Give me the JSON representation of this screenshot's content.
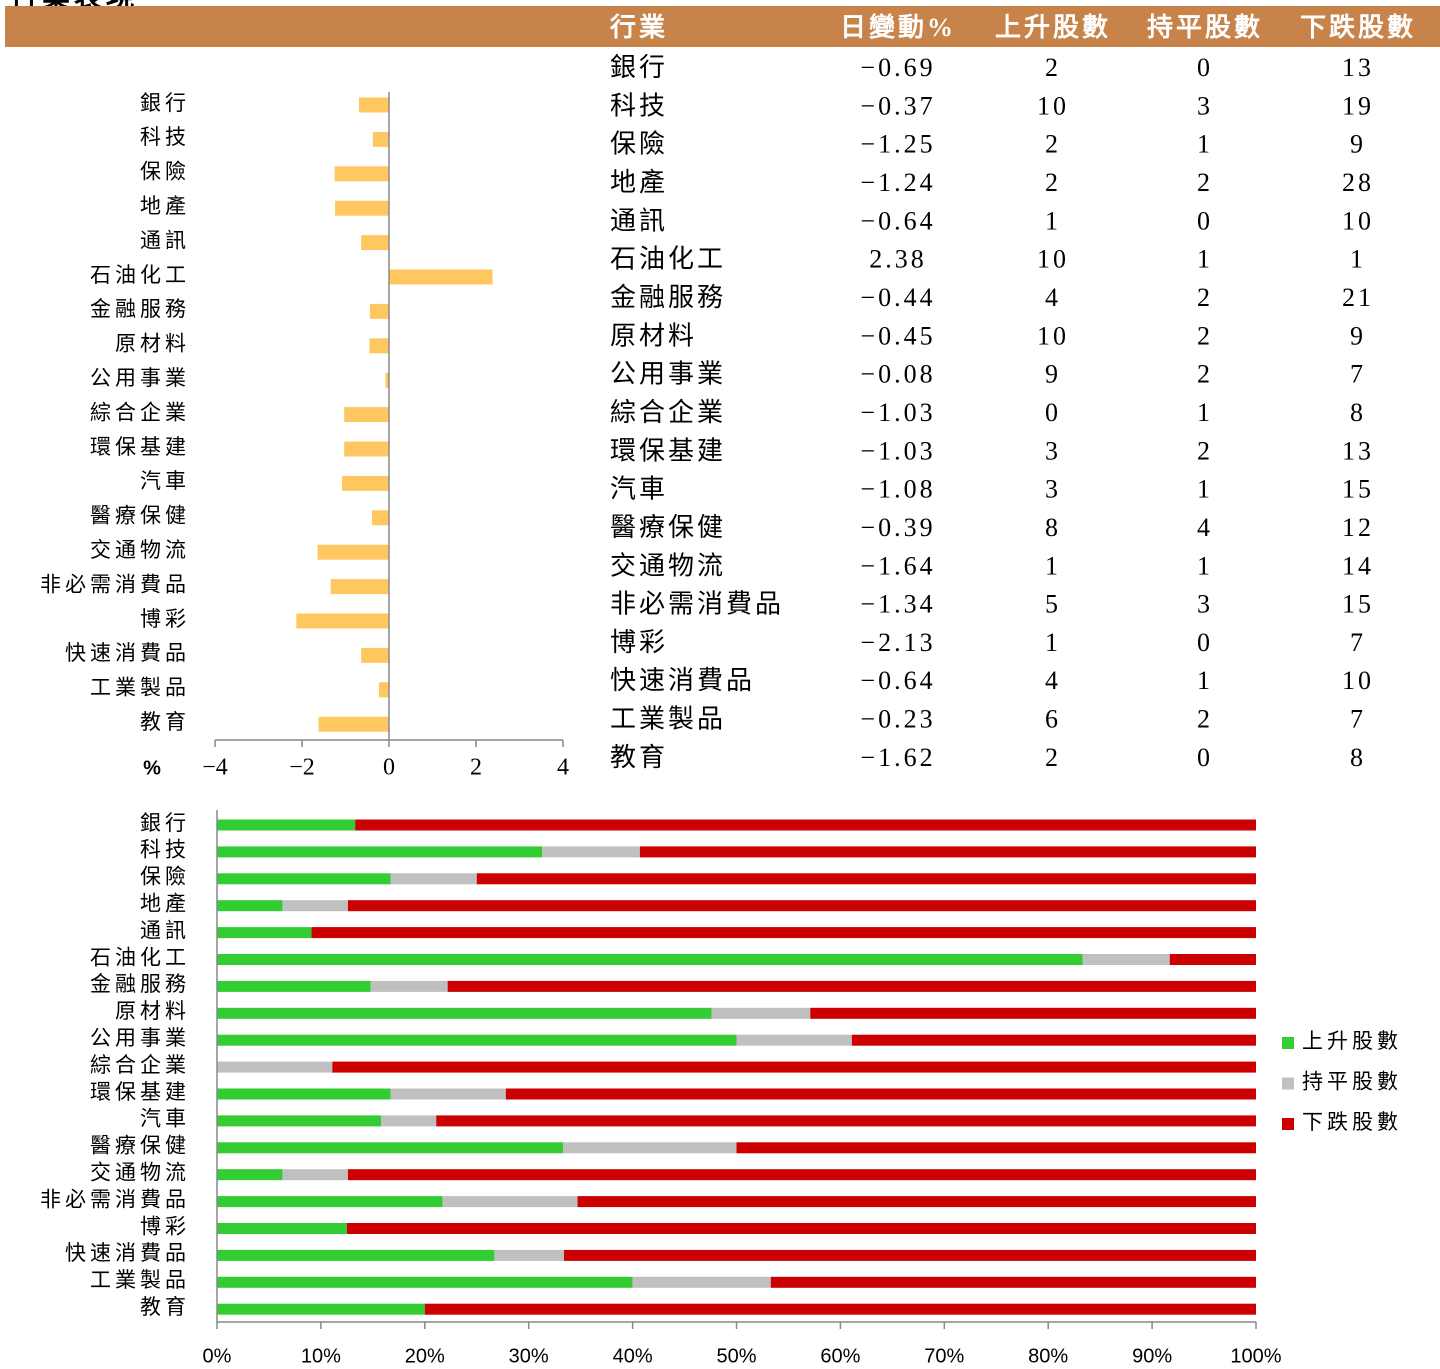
{
  "title": "行業表現",
  "chart_data": [
    {
      "type": "hbar",
      "xlabel": "%",
      "categories": [
        "銀行",
        "科技",
        "保險",
        "地產",
        "通訊",
        "石油化工",
        "金融服務",
        "原材料",
        "公用事業",
        "綜合企業",
        "環保基建",
        "汽車",
        "醫療保健",
        "交通物流",
        "非必需消費品",
        "博彩",
        "快速消費品",
        "工業製品",
        "教育"
      ],
      "values": [
        -0.69,
        -0.37,
        -1.25,
        -1.24,
        -0.64,
        2.38,
        -0.44,
        -0.45,
        -0.08,
        -1.03,
        -1.03,
        -1.08,
        -0.39,
        -1.64,
        -1.34,
        -2.13,
        -0.64,
        -0.23,
        -1.62
      ],
      "color": "#ffc760",
      "xlim": [
        -4,
        4
      ],
      "xticks": [
        {
          "value": -4,
          "label": "−4"
        },
        {
          "value": -2,
          "label": "−2"
        },
        0,
        2,
        4
      ]
    },
    {
      "type": "stacked-hbar",
      "categories": [
        "銀行",
        "科技",
        "保險",
        "地產",
        "通訊",
        "石油化工",
        "金融服務",
        "原材料",
        "公用事業",
        "綜合企業",
        "環保基建",
        "汽車",
        "醫療保健",
        "交通物流",
        "非必需消費品",
        "博彩",
        "快速消費品",
        "工業製品",
        "教育"
      ],
      "series": [
        {
          "name": "上升股數",
          "color": "#33cc33",
          "values": [
            13.3,
            31.3,
            16.7,
            6.3,
            9.1,
            83.3,
            14.8,
            47.6,
            50,
            0,
            16.7,
            15.8,
            33.3,
            6.3,
            21.7,
            12.5,
            26.7,
            40,
            20
          ]
        },
        {
          "name": "持平股數",
          "color": "#c0c0c0",
          "values": [
            0,
            9.4,
            8.3,
            6.3,
            0,
            8.4,
            7.4,
            9.5,
            11.1,
            11.1,
            11.1,
            5.3,
            16.7,
            6.3,
            13,
            0,
            6.7,
            13.3,
            0
          ]
        },
        {
          "name": "下跌股數",
          "color": "#cc0000",
          "values": [
            86.7,
            59.3,
            75,
            87.4,
            90.9,
            8.3,
            77.8,
            42.9,
            38.9,
            88.9,
            72.2,
            78.9,
            50,
            87.4,
            65.3,
            87.5,
            66.6,
            46.7,
            80
          ]
        }
      ],
      "xlim": [
        0,
        100
      ],
      "xticks": [
        {
          "value": 0,
          "label": "0%"
        },
        {
          "value": 10,
          "label": "10%"
        },
        {
          "value": 20,
          "label": "20%"
        },
        {
          "value": 30,
          "label": "30%"
        },
        {
          "value": 40,
          "label": "40%"
        },
        {
          "value": 50,
          "label": "50%"
        },
        {
          "value": 60,
          "label": "60%"
        },
        {
          "value": 70,
          "label": "70%"
        },
        {
          "value": 80,
          "label": "80%"
        },
        {
          "value": 90,
          "label": "90%"
        },
        {
          "value": 100,
          "label": "100%"
        }
      ],
      "legend": "right"
    }
  ],
  "table": {
    "header": [
      "行業",
      "日變動%",
      "上升股數",
      "持平股數",
      "下跌股數"
    ],
    "rows": [
      [
        "銀行",
        "−0.69",
        "2",
        "0",
        "13"
      ],
      [
        "科技",
        "−0.37",
        "10",
        "3",
        "19"
      ],
      [
        "保險",
        "−1.25",
        "2",
        "1",
        "9"
      ],
      [
        "地產",
        "−1.24",
        "2",
        "2",
        "28"
      ],
      [
        "通訊",
        "−0.64",
        "1",
        "0",
        "10"
      ],
      [
        "石油化工",
        "2.38",
        "10",
        "1",
        "1"
      ],
      [
        "金融服務",
        "−0.44",
        "4",
        "2",
        "21"
      ],
      [
        "原材料",
        "−0.45",
        "10",
        "2",
        "9"
      ],
      [
        "公用事業",
        "−0.08",
        "9",
        "2",
        "7"
      ],
      [
        "綜合企業",
        "−1.03",
        "0",
        "1",
        "8"
      ],
      [
        "環保基建",
        "−1.03",
        "3",
        "2",
        "13"
      ],
      [
        "汽車",
        "−1.08",
        "3",
        "1",
        "15"
      ],
      [
        "醫療保健",
        "−0.39",
        "8",
        "4",
        "12"
      ],
      [
        "交通物流",
        "−1.64",
        "1",
        "1",
        "14"
      ],
      [
        "非必需消費品",
        "−1.34",
        "5",
        "3",
        "15"
      ],
      [
        "博彩",
        "−2.13",
        "1",
        "0",
        "7"
      ],
      [
        "快速消費品",
        "−0.64",
        "4",
        "1",
        "10"
      ],
      [
        "工業製品",
        "−0.23",
        "6",
        "2",
        "7"
      ],
      [
        "教育",
        "−1.62",
        "2",
        "0",
        "8"
      ]
    ]
  }
}
